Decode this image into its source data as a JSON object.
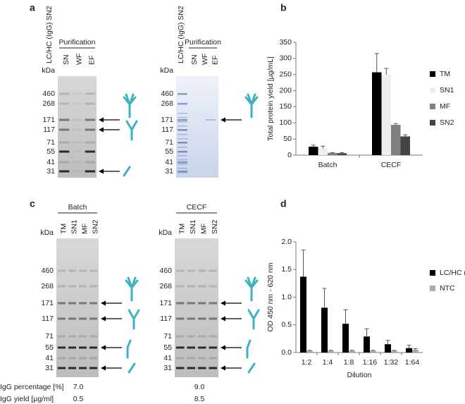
{
  "panel_labels": [
    "a",
    "b",
    "c",
    "d"
  ],
  "kda_label": "kDa",
  "markers": [
    460,
    268,
    171,
    117,
    71,
    55,
    41,
    31
  ],
  "gels": [
    {
      "sample": "LC/HC (IgG) SN2",
      "group": "Purification",
      "lanes": [
        "SN",
        "WF",
        "EF"
      ]
    },
    {
      "sample": "LC/HC (IgG) SN2",
      "group": "Purification",
      "lanes": [
        "SN",
        "WF",
        "EF"
      ]
    },
    {
      "group": "Batch",
      "lanes": [
        "TM",
        "SN1",
        "MF",
        "SN2"
      ]
    },
    {
      "group": "CECF",
      "lanes": [
        "TM",
        "SN1",
        "MF",
        "SN2"
      ]
    }
  ],
  "summary": {
    "rows": [
      {
        "label": "IgG percentage [%]",
        "values": [
          "7.0",
          "9.0"
        ]
      },
      {
        "label": "IgG yield [µg/ml]",
        "values": [
          "0.5",
          "8.5"
        ]
      }
    ]
  },
  "chart_data": [
    {
      "type": "bar",
      "ylabel": "Total protein yield [µg/mL]",
      "categories": [
        "Batch",
        "CECF"
      ],
      "series": [
        {
          "name": "TM",
          "color": "#000000",
          "values": [
            26,
            257
          ],
          "errors": [
            5,
            58
          ]
        },
        {
          "name": "SN1",
          "color": "#eeeeee",
          "values": [
            20,
            249
          ],
          "errors": [
            8,
            20
          ]
        },
        {
          "name": "MF",
          "color": "#808080",
          "values": [
            7,
            94
          ],
          "errors": [
            1,
            4
          ]
        },
        {
          "name": "SN2",
          "color": "#444444",
          "values": [
            6,
            58
          ],
          "errors": [
            2,
            5
          ]
        }
      ],
      "ylim": [
        0,
        350
      ],
      "yticks": [
        0,
        50,
        100,
        150,
        200,
        250,
        300,
        350
      ],
      "legend": "right"
    },
    {
      "type": "bar",
      "ylabel": "OD 450 nm - 620 nm",
      "xlabel": "Dilution",
      "categories": [
        "1:2",
        "1:4",
        "1:8",
        "1:16",
        "1:32",
        "1:64"
      ],
      "series": [
        {
          "name": "LC/HC (IgG)",
          "color": "#000000",
          "values": [
            1.37,
            0.81,
            0.52,
            0.29,
            0.15,
            0.08
          ],
          "errors": [
            0.48,
            0.35,
            0.25,
            0.14,
            0.07,
            0.05
          ]
        },
        {
          "name": "NTC",
          "color": "#aaaaaa",
          "values": [
            0.03,
            0.03,
            0.03,
            0.03,
            0.03,
            0.05
          ],
          "errors": [
            0.01,
            0.01,
            0.01,
            0.01,
            0.01,
            0.02
          ]
        }
      ],
      "ylim": [
        0,
        2
      ],
      "yticks": [
        {
          "value": 0,
          "label": "0.0"
        },
        {
          "value": 0.5,
          "label": "0.5"
        },
        {
          "value": 1,
          "label": "1.0"
        },
        {
          "value": 1.5,
          "label": "1.5"
        },
        {
          "value": 2,
          "label": "2.0"
        }
      ],
      "legend": "right"
    }
  ]
}
